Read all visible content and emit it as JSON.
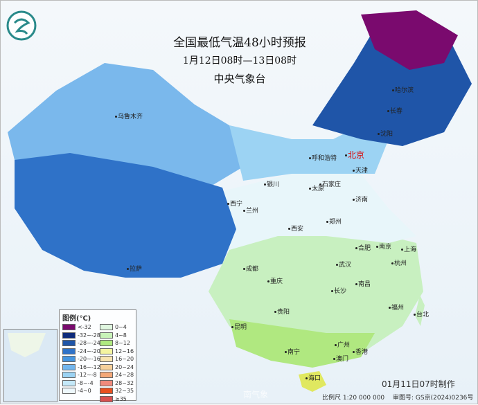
{
  "title": "全国最低气温48小时预报",
  "subtitle": "1月12日08时—13日08时",
  "issuer": "中央气象台",
  "cities": [
    {
      "name": "乌鲁木齐"
    },
    {
      "name": "呼和浩特"
    },
    {
      "name": "北京",
      "capital": true
    },
    {
      "name": "天津"
    },
    {
      "name": "哈尔滨"
    },
    {
      "name": "长春"
    },
    {
      "name": "沈阳"
    },
    {
      "name": "石家庄"
    },
    {
      "name": "太原"
    },
    {
      "name": "银川"
    },
    {
      "name": "西宁"
    },
    {
      "name": "兰州"
    },
    {
      "name": "济南"
    },
    {
      "name": "郑州"
    },
    {
      "name": "西安"
    },
    {
      "name": "合肥"
    },
    {
      "name": "南京"
    },
    {
      "name": "上海"
    },
    {
      "name": "杭州"
    },
    {
      "name": "武汉"
    },
    {
      "name": "成都"
    },
    {
      "name": "重庆"
    },
    {
      "name": "长沙"
    },
    {
      "name": "南昌"
    },
    {
      "name": "拉萨"
    },
    {
      "name": "贵阳"
    },
    {
      "name": "福州"
    },
    {
      "name": "台北"
    },
    {
      "name": "昆明"
    },
    {
      "name": "南宁"
    },
    {
      "name": "广州"
    },
    {
      "name": "澳门"
    },
    {
      "name": "香港"
    },
    {
      "name": "海口"
    }
  ],
  "legend": {
    "title": "图例(℃)",
    "items": [
      {
        "label": "<-32",
        "color": "#7a0a6e"
      },
      {
        "label": "-32~-28",
        "color": "#0d2a7a"
      },
      {
        "label": "-28~-24",
        "color": "#1f55a8"
      },
      {
        "label": "-24~-20",
        "color": "#2f72c8"
      },
      {
        "label": "-20~-16",
        "color": "#4595e0"
      },
      {
        "label": "-16~-12",
        "color": "#72b6ee"
      },
      {
        "label": "-12~-8",
        "color": "#9cd3f3"
      },
      {
        "label": "-8~-4",
        "color": "#c4e8f8"
      },
      {
        "label": "-4~0",
        "color": "#eef8fc"
      },
      {
        "label": "0~4",
        "color": "#e0f7e0"
      },
      {
        "label": "4~8",
        "color": "#c8f2b8"
      },
      {
        "label": "8~12",
        "color": "#b0ea80"
      },
      {
        "label": "12~16",
        "color": "#f4f4a0"
      },
      {
        "label": "16~20",
        "color": "#f8e4b0"
      },
      {
        "label": "20~24",
        "color": "#f6d09a"
      },
      {
        "label": "24~28",
        "color": "#f4a878"
      },
      {
        "label": "28~32",
        "color": "#f08a7c"
      },
      {
        "label": "32~35",
        "color": "#e85020"
      },
      {
        "label": "≥35",
        "color": "#d85050"
      }
    ]
  },
  "made_time": "01月11日07时制作",
  "scale": "比例尺 1:20 000 000",
  "review_no": "审图号: GS京(2024)0236号",
  "watermark": "南气象"
}
